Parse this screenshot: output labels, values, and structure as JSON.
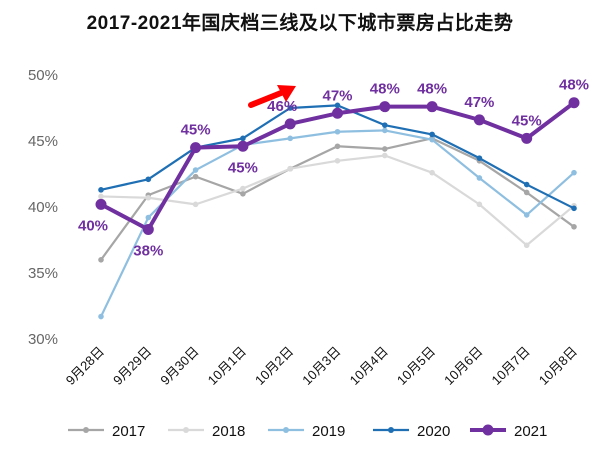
{
  "chart_data": {
    "type": "line",
    "title": "2017-2021年国庆档三线及以下城市票房占比走势",
    "categories": [
      "9月28日",
      "9月29日",
      "9月30日",
      "10月1日",
      "10月2日",
      "10月3日",
      "10月4日",
      "10月5日",
      "10月6日",
      "10月7日",
      "10月8日"
    ],
    "y_ticks": [
      "30%",
      "35%",
      "40%",
      "45%",
      "50%"
    ],
    "ylim": [
      30,
      50
    ],
    "series": [
      {
        "name": "2017",
        "color": "#a6a6a6",
        "values": [
          36.0,
          40.9,
          42.3,
          41.0,
          42.9,
          44.6,
          44.4,
          45.2,
          43.5,
          41.1,
          38.5
        ]
      },
      {
        "name": "2018",
        "color": "#d9d9d9",
        "values": [
          40.8,
          40.7,
          40.2,
          41.4,
          42.9,
          43.5,
          43.9,
          42.6,
          40.2,
          37.1,
          40.1
        ]
      },
      {
        "name": "2019",
        "color": "#8fbfe0",
        "values": [
          31.7,
          39.2,
          42.8,
          44.7,
          45.2,
          45.7,
          45.8,
          45.1,
          42.2,
          39.4,
          42.6
        ]
      },
      {
        "name": "2020",
        "color": "#1f6fb4",
        "values": [
          41.3,
          42.1,
          44.5,
          45.2,
          47.5,
          47.7,
          46.2,
          45.5,
          43.7,
          41.7,
          39.9
        ]
      },
      {
        "name": "2021",
        "color": "#7030a0",
        "values": [
          40.2,
          38.3,
          44.5,
          44.6,
          46.3,
          47.1,
          47.6,
          47.6,
          46.6,
          45.2,
          47.9
        ]
      }
    ],
    "data_labels": [
      "40%",
      "38%",
      "45%",
      "45%",
      "46%",
      "47%",
      "48%",
      "48%",
      "47%",
      "45%",
      "48%"
    ],
    "legend_position": "bottom",
    "annotation": "red-arrow"
  }
}
